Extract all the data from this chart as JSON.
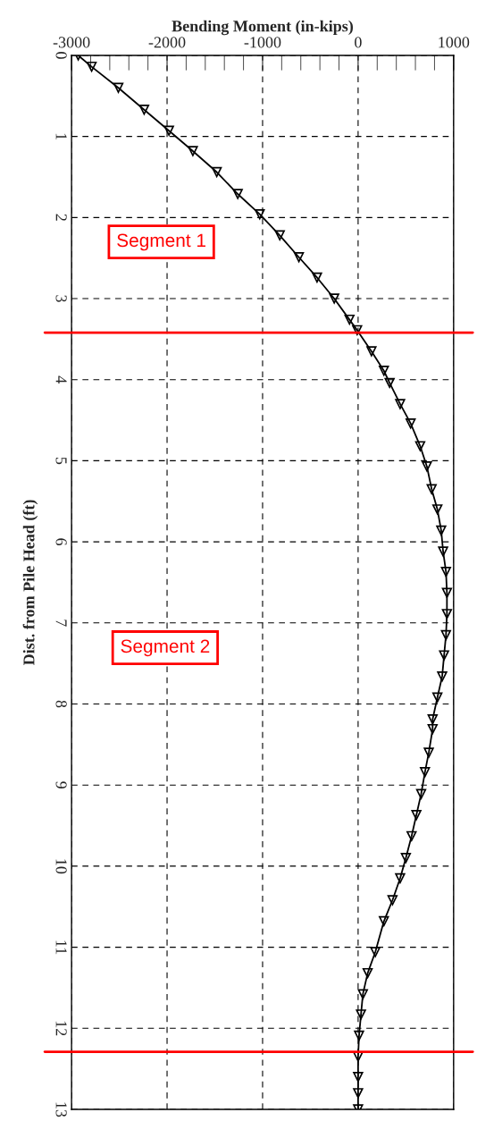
{
  "chart_data": {
    "type": "line",
    "xlabel": "Bending Moment (in-kips)",
    "ylabel": "Dist. from Pile Head (ft)",
    "xlim": [
      -3000,
      1000
    ],
    "xticks": [
      -3000,
      -2000,
      -1000,
      0,
      1000
    ],
    "ylim": [
      13,
      0
    ],
    "yticks": [
      0,
      1,
      2,
      3,
      4,
      5,
      6,
      7,
      8,
      9,
      10,
      11,
      12,
      13
    ],
    "grid": true,
    "marker": "triangle",
    "line_style": "solid",
    "series": [
      {
        "color": "#000000",
        "x": [
          -2930,
          -2790,
          -2510,
          -2240,
          -1980,
          -1730,
          -1480,
          -1260,
          -1030,
          -820,
          -620,
          -430,
          -250,
          -90,
          -10,
          140,
          270,
          330,
          440,
          550,
          650,
          720,
          770,
          830,
          870,
          890,
          920,
          930,
          930,
          920,
          900,
          880,
          830,
          780,
          780,
          740,
          700,
          660,
          610,
          560,
          500,
          440,
          360,
          270,
          180,
          100,
          50,
          30,
          10,
          0,
          0,
          0,
          0
        ],
        "values": [
          0,
          0.14,
          0.4,
          0.67,
          0.93,
          1.18,
          1.44,
          1.71,
          1.96,
          2.22,
          2.49,
          2.74,
          3.0,
          3.26,
          3.39,
          3.65,
          3.89,
          4.04,
          4.3,
          4.54,
          4.82,
          5.07,
          5.35,
          5.6,
          5.86,
          6.12,
          6.37,
          6.63,
          6.89,
          7.15,
          7.4,
          7.66,
          7.92,
          8.19,
          8.31,
          8.6,
          8.84,
          9.11,
          9.37,
          9.63,
          9.9,
          10.15,
          10.42,
          10.68,
          11.06,
          11.32,
          11.58,
          11.83,
          12.09,
          12.35,
          12.6,
          12.8,
          13.0
        ]
      }
    ],
    "ref_lines": [
      {
        "axis": "y",
        "value": 3.42,
        "color": "#ff0000"
      },
      {
        "axis": "y",
        "value": 12.29,
        "color": "#ff0000"
      }
    ],
    "annotations": [
      "Segment 1",
      "Segment 2"
    ]
  }
}
